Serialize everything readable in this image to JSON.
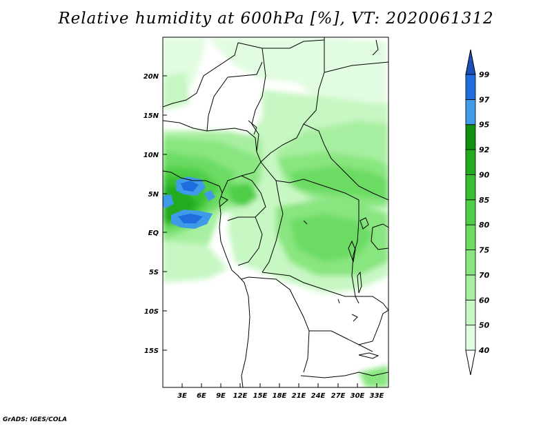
{
  "title": "Relative humidity at 600hPa [%], VT: 2020061312",
  "credit": "GrADS: IGES/COLA",
  "map": {
    "lat_labels": [
      "20N",
      "15N",
      "10N",
      "5N",
      "EQ",
      "5S",
      "10S",
      "15S"
    ],
    "lon_labels": [
      "3E",
      "6E",
      "9E",
      "12E",
      "15E",
      "18E",
      "21E",
      "24E",
      "27E",
      "30E",
      "33E"
    ]
  },
  "colorbar": {
    "levels": [
      "40",
      "50",
      "60",
      "70",
      "75",
      "80",
      "85",
      "90",
      "92",
      "95",
      "97",
      "99"
    ],
    "colors": [
      "#ffffff",
      "#e1fce0",
      "#c7f7c3",
      "#a7efa0",
      "#88e57f",
      "#6cdb63",
      "#4fce47",
      "#37be31",
      "#22ab1f",
      "#108f10",
      "#3f9be8",
      "#206de0",
      "#1a50b8"
    ]
  }
}
